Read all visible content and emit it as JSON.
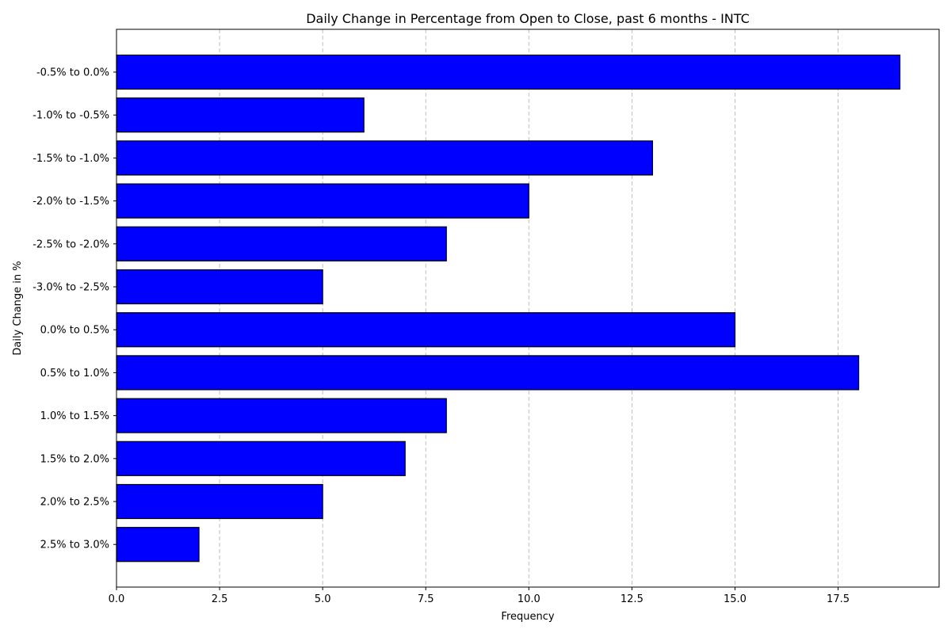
{
  "chart_data": {
    "type": "bar",
    "orientation": "horizontal",
    "title": "Daily Change in Percentage from Open to Close, past 6 months - INTC",
    "xlabel": "Frequency",
    "ylabel": "Daily Change in %",
    "categories": [
      "-0.5% to 0.0%",
      "-1.0% to -0.5%",
      "-1.5% to -1.0%",
      "-2.0% to -1.5%",
      "-2.5% to -2.0%",
      "-3.0% to -2.5%",
      "0.0% to 0.5%",
      "0.5% to 1.0%",
      "1.0% to 1.5%",
      "1.5% to 2.0%",
      "2.0% to 2.5%",
      "2.5% to 3.0%"
    ],
    "values": [
      19,
      6,
      13,
      10,
      8,
      5,
      15,
      18,
      8,
      7,
      5,
      2
    ],
    "xlim": [
      0,
      19.95
    ],
    "xticks": [
      0,
      2.5,
      5,
      7.5,
      10,
      12.5,
      15,
      17.5
    ],
    "xtick_labels": [
      "0.0",
      "2.5",
      "5.0",
      "7.5",
      "10.0",
      "12.5",
      "15.0",
      "17.5"
    ],
    "grid": "x-dashed",
    "bar_color": "#0000ff",
    "bar_edge_color": "#000000",
    "grid_color": "#b0b0b0"
  }
}
